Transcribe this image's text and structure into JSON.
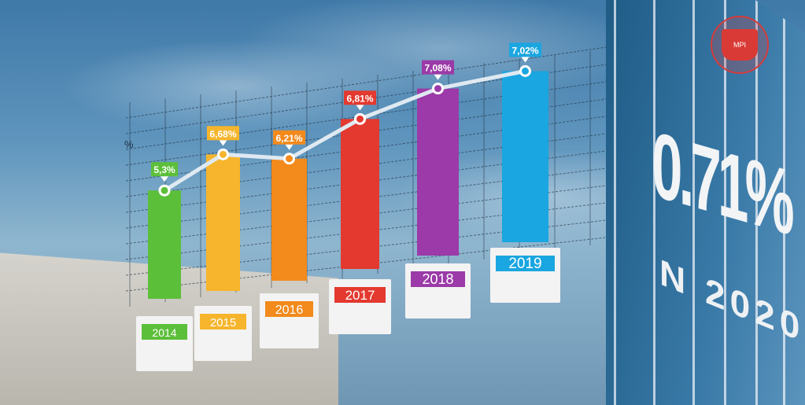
{
  "chart_data": {
    "type": "bar",
    "categories": [
      "2014",
      "2015",
      "2016",
      "2017",
      "2018",
      "2019"
    ],
    "values": [
      5.3,
      6.68,
      6.21,
      6.81,
      7.08,
      7.02
    ],
    "data_labels": [
      "5,3%",
      "6,68%",
      "6,21%",
      "6,81%",
      "7,08%",
      "7,02%"
    ],
    "ylabel": "%",
    "line_overlay": true,
    "grid": true,
    "colors": [
      "#5cbf3a",
      "#f6b52c",
      "#f28a1c",
      "#e3392f",
      "#9b3aa8",
      "#1aa6e0"
    ]
  },
  "headline": {
    "value": "0.71%",
    "subtitle": "N 2020"
  },
  "logo": {
    "text": "MPI"
  }
}
